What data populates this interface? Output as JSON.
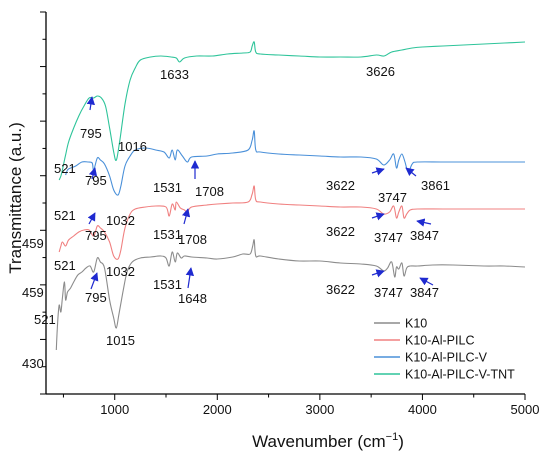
{
  "chart_data": {
    "type": "line",
    "xlabel": "Wavenumber (cm",
    "xlabel_sup": "−1",
    "xlabel_tail": ")",
    "ylabel": "Transmittance (a.u.)",
    "xlim": [
      330,
      5000
    ],
    "x_ticks": [
      "1000",
      "2000",
      "3000",
      "4000",
      "5000"
    ],
    "x_tick_values": [
      1000,
      2000,
      3000,
      4000,
      5000
    ],
    "y_ticks_count": 14,
    "grid": false,
    "legend_position": "bottom-right",
    "series": [
      {
        "name": "K10",
        "color": "#8c8c8c"
      },
      {
        "name": "K10-Al-PILC",
        "color": "#f08080"
      },
      {
        "name": "K10-Al-PILC-V",
        "color": "#4a90d9"
      },
      {
        "name": "K10-Al-PILC-V-TNT",
        "color": "#2ec49a"
      }
    ],
    "annotations": [
      {
        "text": "430"
      },
      {
        "text": "521"
      },
      {
        "text": "1015"
      },
      {
        "text": "459"
      },
      {
        "text": "795"
      },
      {
        "text": "1531"
      },
      {
        "text": "1648"
      },
      {
        "text": "3622"
      },
      {
        "text": "3747"
      },
      {
        "text": "3847"
      },
      {
        "text": "521"
      },
      {
        "text": "1032"
      },
      {
        "text": "795"
      },
      {
        "text": "459"
      },
      {
        "text": "1531"
      },
      {
        "text": "1708"
      },
      {
        "text": "3622"
      },
      {
        "text": "3747"
      },
      {
        "text": "3847"
      },
      {
        "text": "521"
      },
      {
        "text": "795"
      },
      {
        "text": "1032"
      },
      {
        "text": "1531"
      },
      {
        "text": "1708"
      },
      {
        "text": "3622"
      },
      {
        "text": "3747"
      },
      {
        "text": "3861"
      },
      {
        "text": "521"
      },
      {
        "text": "795"
      },
      {
        "text": "1016"
      },
      {
        "text": "1633"
      },
      {
        "text": "3626"
      }
    ]
  }
}
